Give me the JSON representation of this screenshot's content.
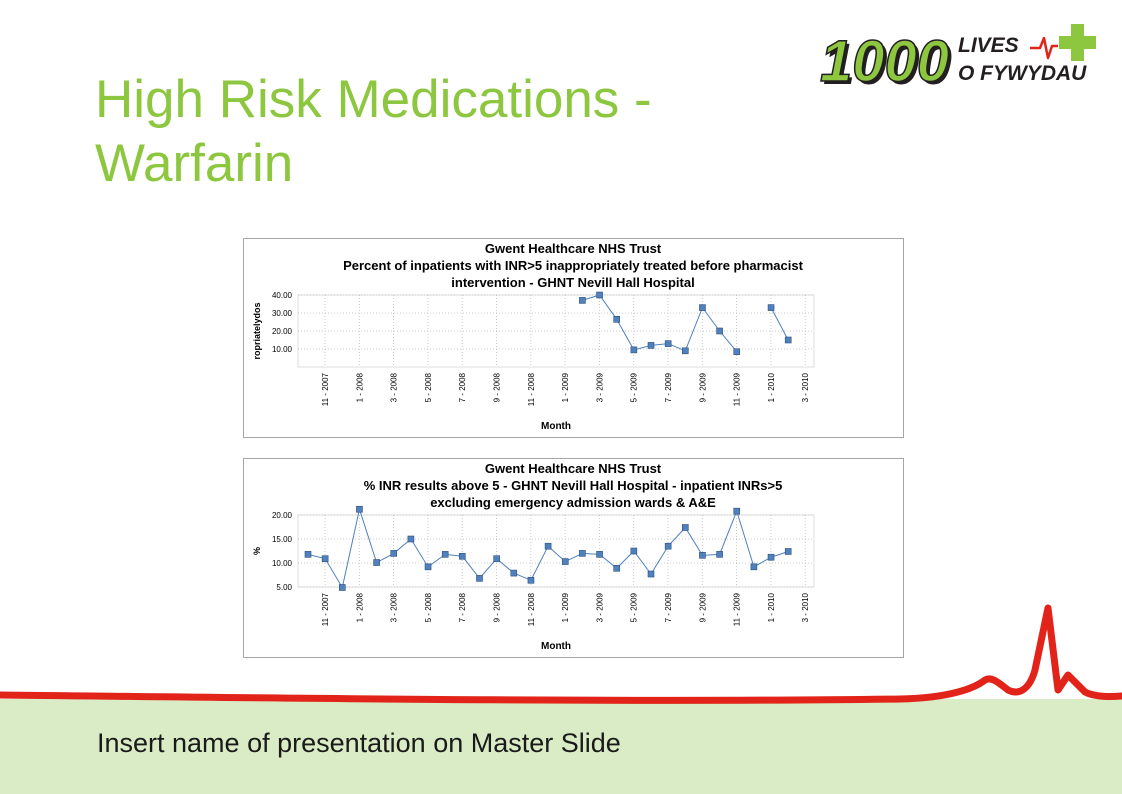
{
  "slide": {
    "title": "High Risk Medications - Warfarin",
    "footer": "Insert name of presentation on Master Slide"
  },
  "logo": {
    "number": "1000",
    "line1": "LIVES",
    "line2": "O FYWYDAU",
    "colors": {
      "green": "#8dc63f",
      "dark": "#231f20",
      "red": "#e2231a"
    }
  },
  "colors": {
    "title": "#8dc63f",
    "footer_band": "#d9ecc5",
    "wave": "#e2231a",
    "marker": "#4f81bd",
    "line": "#4f81bd"
  },
  "chart_data": [
    {
      "type": "line",
      "title_lines": [
        "Gwent Healthcare NHS Trust",
        "Percent of inpatients with INR>5 inappropriately treated before pharmacist",
        "intervention - GHNT Nevill Hall Hospital"
      ],
      "xlabel": "Month",
      "ylabel": "ropriatelydos",
      "ylim": [
        0,
        40
      ],
      "yticks": [
        "40.00",
        "30.00",
        "20.00",
        "10.00"
      ],
      "grid": true,
      "x_tick_labels": [
        "11 - 2007",
        "1 - 2008",
        "3 - 2008",
        "5 - 2008",
        "7 - 2008",
        "9 - 2008",
        "11 - 2008",
        "1 - 2009",
        "3 - 2009",
        "5 - 2009",
        "7 - 2009",
        "9 - 2009",
        "11 - 2009",
        "1 - 2010",
        "3 - 2010"
      ],
      "series": [
        {
          "values": [
            null,
            null,
            null,
            null,
            null,
            null,
            null,
            null,
            null,
            null,
            null,
            null,
            null,
            null,
            null,
            null,
            37,
            40,
            26.5,
            9.5,
            12,
            13,
            9,
            33,
            20,
            8.5,
            null,
            33,
            15
          ]
        }
      ]
    },
    {
      "type": "line",
      "title_lines": [
        "Gwent Healthcare NHS Trust",
        "% INR results above 5 - GHNT Nevill Hall Hospital - inpatient INRs>5",
        "excluding emergency admission wards & A&E"
      ],
      "xlabel": "Month",
      "ylabel": "%",
      "ylim": [
        5,
        20
      ],
      "yticks": [
        "20.00",
        "15.00",
        "10.00",
        "5.00"
      ],
      "grid": true,
      "x_tick_labels": [
        "11 - 2007",
        "1 - 2008",
        "3 - 2008",
        "5 - 2008",
        "7 - 2008",
        "9 - 2008",
        "11 - 2008",
        "1 - 2009",
        "3 - 2009",
        "5 - 2009",
        "7 - 2009",
        "9 - 2009",
        "11 - 2009",
        "1 - 2010",
        "3 - 2010"
      ],
      "series": [
        {
          "values": [
            11.8,
            10.9,
            4.9,
            21.2,
            10.1,
            12,
            15,
            9.2,
            11.8,
            11.4,
            6.8,
            10.9,
            7.9,
            6.4,
            13.5,
            10.3,
            12,
            11.8,
            8.9,
            12.5,
            7.7,
            13.5,
            17.4,
            11.6,
            11.8,
            20.8,
            9.2,
            11.2,
            12.4
          ]
        }
      ]
    }
  ]
}
